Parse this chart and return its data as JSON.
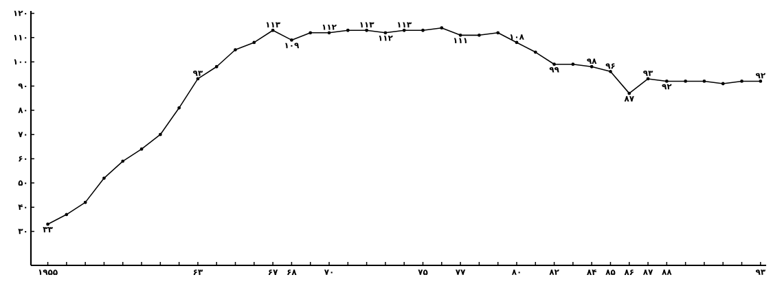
{
  "chart_data": {
    "type": "line",
    "color": "#000000",
    "marker": "circle",
    "line_style": "solid",
    "x": [
      1955,
      1956,
      1957,
      1958,
      1959,
      1960,
      1961,
      1962,
      1963,
      1964,
      1965,
      1966,
      1967,
      1968,
      1969,
      1970,
      1971,
      1972,
      1973,
      1974,
      1975,
      1976,
      1977,
      1978,
      1979,
      1980,
      1981,
      1982,
      1983,
      1984,
      1985,
      1986,
      1987,
      1988,
      1989,
      1990,
      1991,
      1992,
      1993
    ],
    "values": [
      33,
      37,
      42,
      52,
      59,
      64,
      70,
      81,
      93,
      98,
      105,
      108,
      113,
      109,
      112,
      112,
      113,
      113,
      112,
      113,
      113,
      114,
      111,
      111,
      112,
      108,
      104,
      99,
      99,
      98,
      96,
      87,
      93,
      92,
      92,
      92,
      91,
      92,
      92
    ],
    "value_labels": [
      "۳۳",
      null,
      null,
      null,
      null,
      null,
      null,
      null,
      "۹۳",
      null,
      null,
      null,
      "۱۱۳",
      "۱۰۹",
      null,
      "۱۱۲",
      null,
      "۱۱۳",
      "۱۱۲",
      "۱۱۳",
      null,
      null,
      "۱۱۱",
      null,
      null,
      "۱۰۸",
      null,
      "۹۹",
      null,
      "۹۸",
      "۹۶",
      "۸۷",
      "۹۳",
      "۹۲",
      null,
      null,
      null,
      null,
      "۹۲"
    ],
    "xlim": [
      1954.1,
      1993.3
    ],
    "ylim": [
      16,
      121
    ],
    "xticks": [
      {
        "value": 1955,
        "label": "۱۹۵۵"
      },
      {
        "value": 1956,
        "label": null
      },
      {
        "value": 1957,
        "label": null
      },
      {
        "value": 1958,
        "label": null
      },
      {
        "value": 1959,
        "label": null
      },
      {
        "value": 1960,
        "label": null
      },
      {
        "value": 1961,
        "label": null
      },
      {
        "value": 1962,
        "label": null
      },
      {
        "value": 1963,
        "label": "۶۳"
      },
      {
        "value": 1964,
        "label": null
      },
      {
        "value": 1965,
        "label": null
      },
      {
        "value": 1966,
        "label": null
      },
      {
        "value": 1967,
        "label": "۶۷"
      },
      {
        "value": 1968,
        "label": "۶۸"
      },
      {
        "value": 1969,
        "label": null
      },
      {
        "value": 1970,
        "label": "۷۰"
      },
      {
        "value": 1971,
        "label": null
      },
      {
        "value": 1972,
        "label": null
      },
      {
        "value": 1973,
        "label": null
      },
      {
        "value": 1974,
        "label": null
      },
      {
        "value": 1975,
        "label": "۷۵"
      },
      {
        "value": 1976,
        "label": null
      },
      {
        "value": 1977,
        "label": "۷۷"
      },
      {
        "value": 1978,
        "label": null
      },
      {
        "value": 1979,
        "label": null
      },
      {
        "value": 1980,
        "label": "۸۰"
      },
      {
        "value": 1981,
        "label": null
      },
      {
        "value": 1982,
        "label": "۸۲"
      },
      {
        "value": 1983,
        "label": null
      },
      {
        "value": 1984,
        "label": "۸۴"
      },
      {
        "value": 1985,
        "label": "۸۵"
      },
      {
        "value": 1986,
        "label": "۸۶"
      },
      {
        "value": 1987,
        "label": "۸۷"
      },
      {
        "value": 1988,
        "label": "۸۸"
      },
      {
        "value": 1989,
        "label": null
      },
      {
        "value": 1990,
        "label": null
      },
      {
        "value": 1991,
        "label": null
      },
      {
        "value": 1992,
        "label": null
      },
      {
        "value": 1993,
        "label": "۹۳"
      }
    ],
    "yticks": [
      {
        "value": 30,
        "label": "۳۰"
      },
      {
        "value": 40,
        "label": "۴۰"
      },
      {
        "value": 50,
        "label": "۵۰"
      },
      {
        "value": 60,
        "label": "۶۰"
      },
      {
        "value": 70,
        "label": "۷۰"
      },
      {
        "value": 80,
        "label": "۸۰"
      },
      {
        "value": 90,
        "label": "۹۰"
      },
      {
        "value": 100,
        "label": "۱۰۰"
      },
      {
        "value": 110,
        "label": "۱۱۰"
      },
      {
        "value": 120,
        "label": "۱۲۰"
      }
    ]
  }
}
